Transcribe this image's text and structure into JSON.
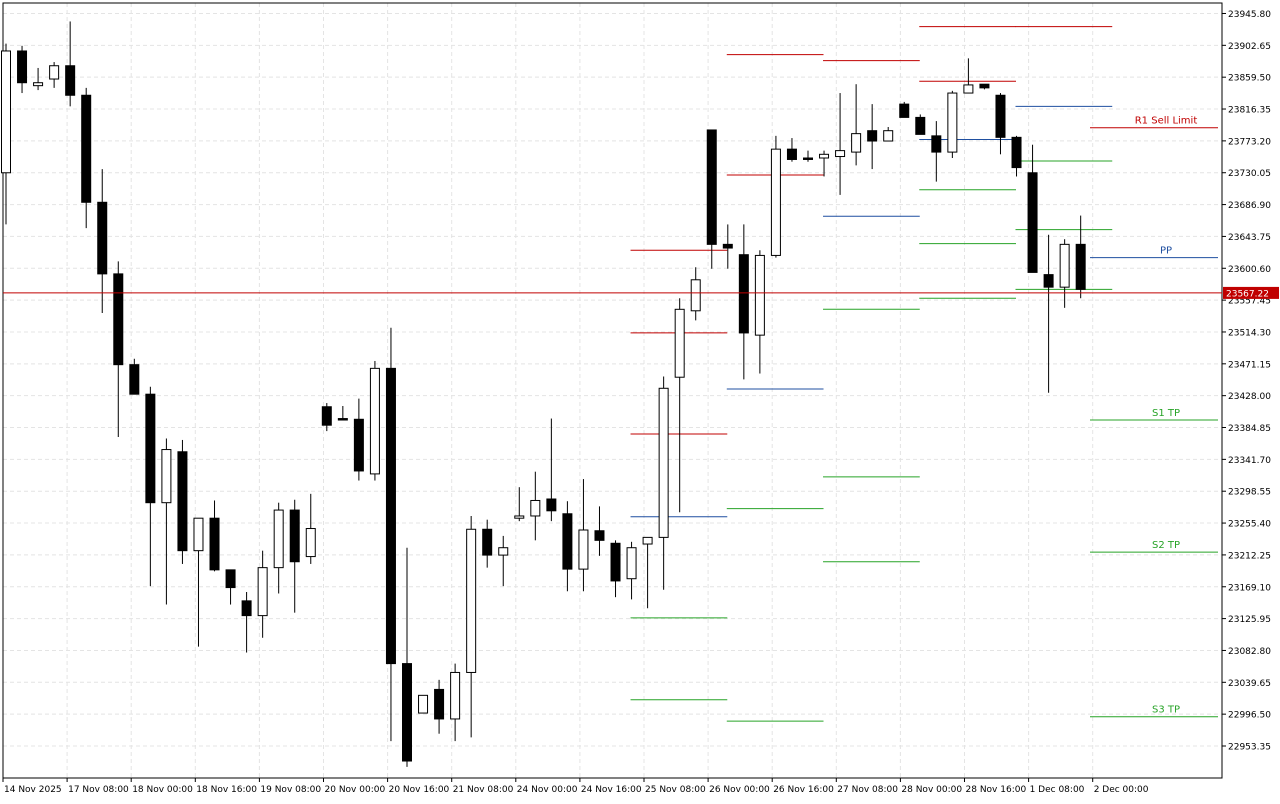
{
  "chart_data": {
    "type": "candlestick",
    "title": "",
    "xlabel": "",
    "ylabel": "",
    "ylim": [
      22910.0,
      23960.0
    ],
    "y_ticks": [
      22953.35,
      22996.5,
      23039.65,
      23082.8,
      23125.95,
      23169.1,
      23212.25,
      23255.4,
      23298.55,
      23341.7,
      23384.85,
      23428.0,
      23471.15,
      23514.3,
      23557.45,
      23600.6,
      23643.75,
      23686.9,
      23730.05,
      23773.2,
      23816.35,
      23859.5,
      23902.65,
      23945.8
    ],
    "x_labels": [
      "14 Nov 2025",
      "17 Nov 08:00",
      "18 Nov 00:00",
      "18 Nov 16:00",
      "19 Nov 08:00",
      "20 Nov 00:00",
      "20 Nov 16:00",
      "21 Nov 08:00",
      "24 Nov 00:00",
      "24 Nov 16:00",
      "25 Nov 08:00",
      "26 Nov 00:00",
      "26 Nov 16:00",
      "27 Nov 08:00",
      "28 Nov 00:00",
      "28 Nov 16:00",
      "1 Dec 08:00",
      "2 Dec 00:00"
    ],
    "current_price": {
      "value": 23567.22,
      "label": "23567.22",
      "color": "#c00000"
    },
    "candles": [
      {
        "o": 23730,
        "h": 23905,
        "l": 23660,
        "c": 23895
      },
      {
        "o": 23895,
        "h": 23902,
        "l": 23838,
        "c": 23852
      },
      {
        "o": 23848,
        "h": 23872,
        "l": 23842,
        "c": 23852
      },
      {
        "o": 23857,
        "h": 23880,
        "l": 23845,
        "c": 23875
      },
      {
        "o": 23875,
        "h": 23935,
        "l": 23820,
        "c": 23835
      },
      {
        "o": 23835,
        "h": 23845,
        "l": 23655,
        "c": 23690
      },
      {
        "o": 23690,
        "h": 23735,
        "l": 23540,
        "c": 23593
      },
      {
        "o": 23593,
        "h": 23610,
        "l": 23372,
        "c": 23470
      },
      {
        "o": 23470,
        "h": 23478,
        "l": 23430,
        "c": 23430
      },
      {
        "o": 23430,
        "h": 23440,
        "l": 23170,
        "c": 23283
      },
      {
        "o": 23283,
        "h": 23370,
        "l": 23145,
        "c": 23355
      },
      {
        "o": 23352,
        "h": 23368,
        "l": 23200,
        "c": 23218
      },
      {
        "o": 23218,
        "h": 23262,
        "l": 23088,
        "c": 23262
      },
      {
        "o": 23262,
        "h": 23286,
        "l": 23190,
        "c": 23192
      },
      {
        "o": 23192,
        "h": 23192,
        "l": 23145,
        "c": 23168
      },
      {
        "o": 23150,
        "h": 23162,
        "l": 23080,
        "c": 23130
      },
      {
        "o": 23130,
        "h": 23218,
        "l": 23100,
        "c": 23195
      },
      {
        "o": 23195,
        "h": 23283,
        "l": 23160,
        "c": 23273
      },
      {
        "o": 23273,
        "h": 23287,
        "l": 23134,
        "c": 23203
      },
      {
        "o": 23210,
        "h": 23295,
        "l": 23200,
        "c": 23248
      },
      {
        "o": 23413,
        "h": 23418,
        "l": 23380,
        "c": 23388
      },
      {
        "o": 23397,
        "h": 23414,
        "l": 23395,
        "c": 23395
      },
      {
        "o": 23396,
        "h": 23424,
        "l": 23313,
        "c": 23326
      },
      {
        "o": 23322,
        "h": 23475,
        "l": 23313,
        "c": 23465
      },
      {
        "o": 23465,
        "h": 23520,
        "l": 22960,
        "c": 23065
      },
      {
        "o": 23065,
        "h": 23222,
        "l": 22925,
        "c": 22933
      },
      {
        "o": 22998,
        "h": 23022,
        "l": 22998,
        "c": 23022
      },
      {
        "o": 23030,
        "h": 23043,
        "l": 22970,
        "c": 22990
      },
      {
        "o": 22990,
        "h": 23065,
        "l": 22960,
        "c": 23053
      },
      {
        "o": 23053,
        "h": 23265,
        "l": 22965,
        "c": 23247
      },
      {
        "o": 23247,
        "h": 23260,
        "l": 23195,
        "c": 23212
      },
      {
        "o": 23212,
        "h": 23238,
        "l": 23170,
        "c": 23222
      },
      {
        "o": 23262,
        "h": 23304,
        "l": 23258,
        "c": 23265
      },
      {
        "o": 23265,
        "h": 23325,
        "l": 23232,
        "c": 23286
      },
      {
        "o": 23288,
        "h": 23397,
        "l": 23258,
        "c": 23272
      },
      {
        "o": 23268,
        "h": 23285,
        "l": 23163,
        "c": 23193
      },
      {
        "o": 23193,
        "h": 23315,
        "l": 23163,
        "c": 23246
      },
      {
        "o": 23245,
        "h": 23278,
        "l": 23211,
        "c": 23232
      },
      {
        "o": 23228,
        "h": 23232,
        "l": 23155,
        "c": 23177
      },
      {
        "o": 23180,
        "h": 23230,
        "l": 23152,
        "c": 23222
      },
      {
        "o": 23227,
        "h": 23233,
        "l": 23140,
        "c": 23236
      },
      {
        "o": 23236,
        "h": 23454,
        "l": 23165,
        "c": 23438
      },
      {
        "o": 23453,
        "h": 23560,
        "l": 23270,
        "c": 23545
      },
      {
        "o": 23543,
        "h": 23602,
        "l": 23530,
        "c": 23585
      },
      {
        "o": 23788,
        "h": 23788,
        "l": 23600,
        "c": 23633
      },
      {
        "o": 23633,
        "h": 23660,
        "l": 23600,
        "c": 23628
      },
      {
        "o": 23619,
        "h": 23660,
        "l": 23450,
        "c": 23513
      },
      {
        "o": 23510,
        "h": 23625,
        "l": 23458,
        "c": 23618
      },
      {
        "o": 23618,
        "h": 23780,
        "l": 23615,
        "c": 23762
      },
      {
        "o": 23762,
        "h": 23777,
        "l": 23745,
        "c": 23748
      },
      {
        "o": 23750,
        "h": 23760,
        "l": 23745,
        "c": 23748
      },
      {
        "o": 23750,
        "h": 23760,
        "l": 23725,
        "c": 23755
      },
      {
        "o": 23752,
        "h": 23838,
        "l": 23700,
        "c": 23760
      },
      {
        "o": 23758,
        "h": 23850,
        "l": 23740,
        "c": 23783
      },
      {
        "o": 23787,
        "h": 23823,
        "l": 23735,
        "c": 23773
      },
      {
        "o": 23773,
        "h": 23792,
        "l": 23780,
        "c": 23787
      },
      {
        "o": 23823,
        "h": 23826,
        "l": 23805,
        "c": 23805
      },
      {
        "o": 23805,
        "h": 23809,
        "l": 23782,
        "c": 23782
      },
      {
        "o": 23780,
        "h": 23800,
        "l": 23718,
        "c": 23758
      },
      {
        "o": 23758,
        "h": 23841,
        "l": 23750,
        "c": 23838
      },
      {
        "o": 23838,
        "h": 23885,
        "l": 23838,
        "c": 23849
      },
      {
        "o": 23850,
        "h": 23850,
        "l": 23843,
        "c": 23845
      },
      {
        "o": 23835,
        "h": 23838,
        "l": 23755,
        "c": 23778
      },
      {
        "o": 23778,
        "h": 23780,
        "l": 23725,
        "c": 23737
      },
      {
        "o": 23730,
        "h": 23768,
        "l": 23595,
        "c": 23595
      },
      {
        "o": 23592,
        "h": 23646,
        "l": 23432,
        "c": 23575
      },
      {
        "o": 23575,
        "h": 23640,
        "l": 23547,
        "c": 23633
      },
      {
        "o": 23633,
        "h": 23672,
        "l": 23560,
        "c": 23572
      }
    ],
    "pivot_levels": [
      {
        "start": 39,
        "end": 45,
        "lines": [
          {
            "value": 23625,
            "color": "#c00000"
          },
          {
            "value": 23513,
            "color": "#c00000"
          },
          {
            "value": 23376,
            "color": "#c00000"
          },
          {
            "value": 23264,
            "color": "#1f4fa0"
          },
          {
            "value": 23127,
            "color": "#27a327"
          },
          {
            "value": 23016,
            "color": "#27a327"
          }
        ]
      },
      {
        "start": 45,
        "end": 51,
        "lines": [
          {
            "value": 23890,
            "color": "#c00000"
          },
          {
            "value": 23727,
            "color": "#c00000"
          },
          {
            "value": 23437,
            "color": "#1f4fa0"
          },
          {
            "value": 23275,
            "color": "#27a327"
          },
          {
            "value": 22987,
            "color": "#27a327"
          }
        ]
      },
      {
        "start": 51,
        "end": 57,
        "lines": [
          {
            "value": 23882,
            "color": "#c00000"
          },
          {
            "value": 23671,
            "color": "#1f4fa0"
          },
          {
            "value": 23545,
            "color": "#27a327"
          },
          {
            "value": 23318,
            "color": "#27a327"
          },
          {
            "value": 23203,
            "color": "#27a327"
          }
        ]
      },
      {
        "start": 57,
        "end": 63,
        "lines": [
          {
            "value": 23928,
            "color": "#c00000"
          },
          {
            "value": 23854,
            "color": "#c00000"
          },
          {
            "value": 23775,
            "color": "#1f4fa0"
          },
          {
            "value": 23707,
            "color": "#27a327"
          },
          {
            "value": 23634,
            "color": "#27a327"
          },
          {
            "value": 23560,
            "color": "#27a327"
          }
        ]
      },
      {
        "start": 63,
        "end": 69,
        "lines": [
          {
            "value": 23928,
            "color": "#c00000"
          },
          {
            "value": 23820,
            "color": "#1f4fa0"
          },
          {
            "value": 23746,
            "color": "#27a327"
          },
          {
            "value": 23653,
            "color": "#27a327"
          },
          {
            "value": 23572,
            "color": "#27a327"
          }
        ]
      }
    ],
    "annotations": [
      {
        "label": "R1 Sell Limit",
        "value": 23791,
        "color": "#c00000"
      },
      {
        "label": "PP",
        "value": 23615,
        "color": "#1f4fa0"
      },
      {
        "label": "S1 TP",
        "value": 23395,
        "color": "#27a327"
      },
      {
        "label": "S2 TP",
        "value": 23216,
        "color": "#27a327"
      },
      {
        "label": "S3 TP",
        "value": 22993,
        "color": "#27a327"
      }
    ],
    "grid": true,
    "colors": {
      "up_fill": "#ffffff",
      "down_fill": "#000000",
      "outline": "#000000",
      "grid": "#e4e4e4",
      "axis": "#000000"
    }
  }
}
